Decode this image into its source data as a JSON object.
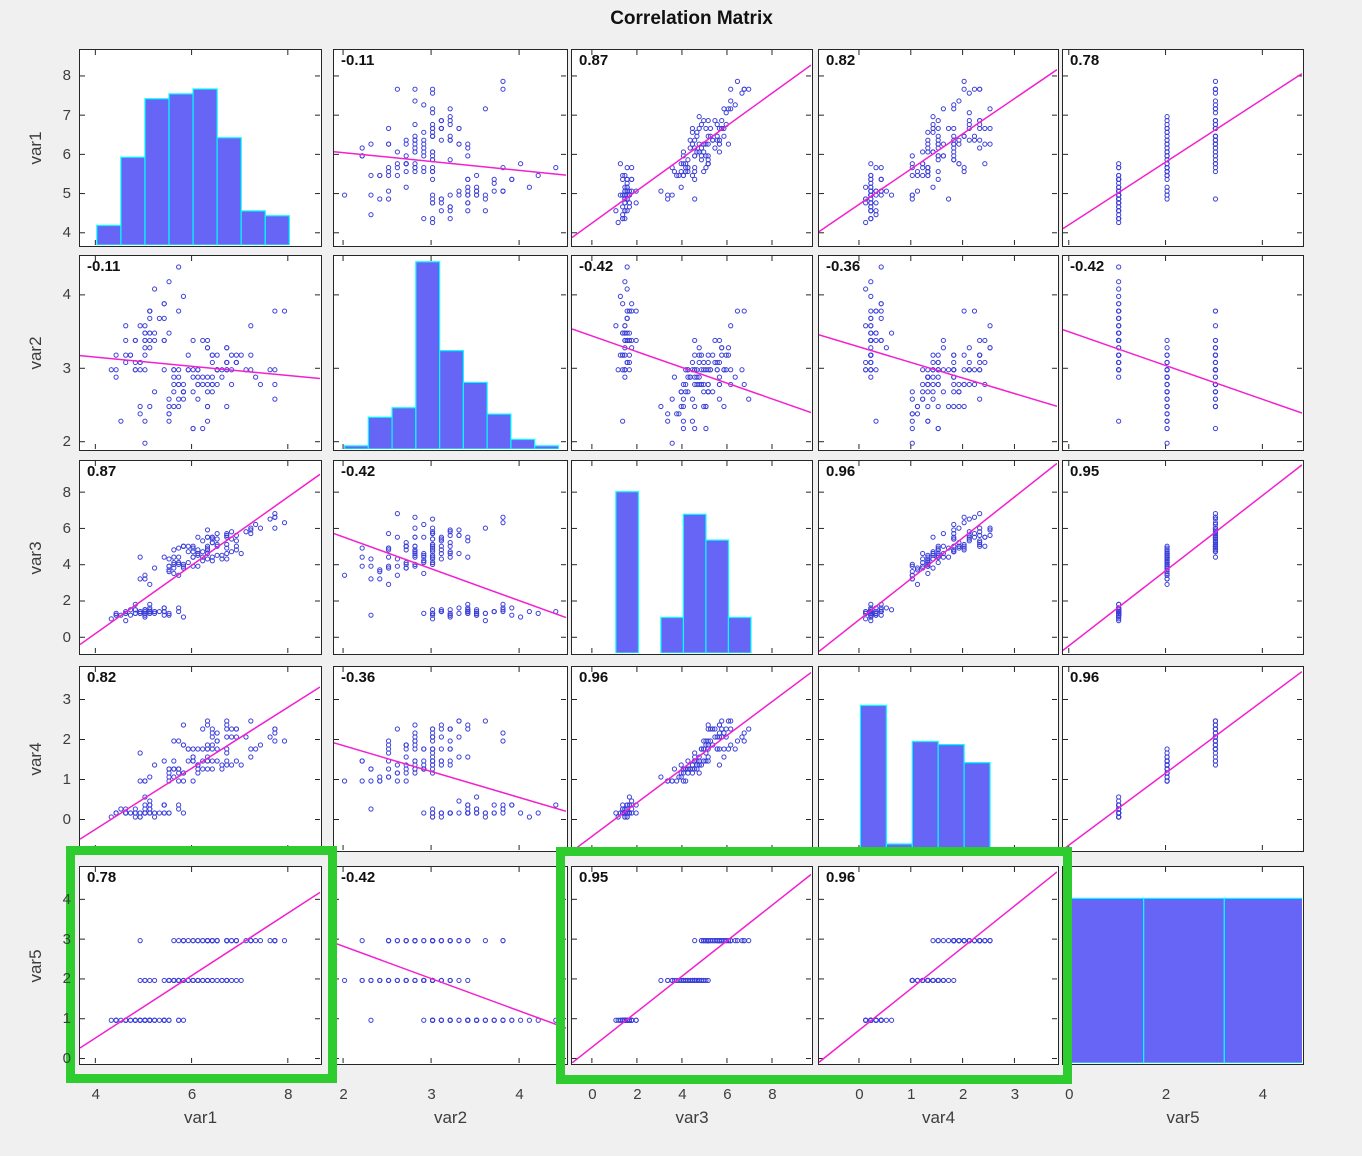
{
  "title": "Correlation Matrix",
  "colors": {
    "figure_background": "#f0f0f1",
    "axes_background": "#ffffff",
    "frame": "#262626",
    "marker": "#3c40d8",
    "histogram_fill": "#6665f5",
    "histogram_edge": "#00ffff",
    "fit_line": "#f320cf",
    "correlation_text": "#111111",
    "tick_text": "#3d3d3d",
    "highlight": "#2ecc2e"
  },
  "chart_data": {
    "type": "scatter",
    "subtype": "scatter-plot-matrix",
    "title": "Correlation Matrix",
    "n_observations": 150,
    "marker": "open-circle",
    "fit": "least-squares-line-per-panel",
    "diagonal": "histogram",
    "variables": [
      {
        "name": "var1",
        "axis_limits": [
          3.65,
          8.7
        ],
        "y_ticks": [
          4,
          5,
          6,
          7,
          8
        ],
        "x_ticks": [
          4,
          6,
          8
        ]
      },
      {
        "name": "var2",
        "axis_limits": [
          1.88,
          4.55
        ],
        "y_ticks": [
          2,
          3,
          4
        ],
        "x_ticks": [
          2,
          3,
          4
        ]
      },
      {
        "name": "var3",
        "axis_limits": [
          -0.95,
          9.8
        ],
        "y_ticks": [
          0,
          2,
          4,
          6,
          8
        ],
        "x_ticks": [
          0,
          2,
          4,
          6,
          8
        ]
      },
      {
        "name": "var4",
        "axis_limits": [
          -0.8,
          3.85
        ],
        "y_ticks": [
          0,
          1,
          2,
          3
        ],
        "x_ticks": [
          0,
          1,
          2,
          3
        ]
      },
      {
        "name": "var5",
        "axis_limits": [
          -0.15,
          4.85
        ],
        "y_ticks": [
          0,
          1,
          2,
          3,
          4
        ],
        "x_ticks": [
          0,
          2,
          4
        ]
      }
    ],
    "correlations": [
      [
        null,
        "-0.11",
        "0.87",
        "0.82",
        "0.78"
      ],
      [
        "-0.11",
        null,
        "-0.42",
        "-0.36",
        "-0.42"
      ],
      [
        "0.87",
        "-0.42",
        null,
        "0.96",
        "0.95"
      ],
      [
        "0.82",
        "-0.36",
        "0.96",
        null,
        "0.96"
      ],
      [
        "0.78",
        "-0.42",
        "0.95",
        "0.96",
        null
      ]
    ],
    "histograms": [
      {
        "variable": "var1",
        "bin_edges": [
          4,
          4.5,
          5,
          5.5,
          6,
          6.5,
          7,
          7.5,
          8
        ],
        "counts": [
          4,
          18,
          30,
          31,
          32,
          22,
          7,
          6
        ],
        "peak_height_frac": 0.8
      },
      {
        "variable": "var2",
        "bin_edges": [
          2.0,
          2.27,
          2.54,
          2.81,
          3.08,
          3.35,
          3.62,
          3.89,
          4.16,
          4.43
        ],
        "counts": [
          1,
          10,
          13,
          59,
          31,
          21,
          11,
          3,
          1
        ],
        "peak_height_frac": 0.97
      },
      {
        "variable": "var3",
        "bin_edges": [
          1,
          2,
          3,
          4,
          5,
          6,
          7
        ],
        "counts": [
          50,
          0,
          11,
          43,
          35,
          11
        ],
        "peak_height_frac": 0.84
      },
      {
        "variable": "var4",
        "bin_edges": [
          0,
          0.5,
          1,
          1.5,
          2,
          2.5
        ],
        "counts": [
          48,
          2,
          36,
          35,
          29
        ],
        "peak_height_frac": 0.79
      },
      {
        "variable": "var5",
        "bin_edges": [
          -0.15,
          1.5166,
          3.1833,
          4.85
        ],
        "counts": [
          50,
          50,
          50
        ],
        "peak_height_frac": 0.84
      }
    ],
    "observations": [
      [
        5.1,
        3.5,
        1.4,
        0.2,
        1
      ],
      [
        4.9,
        3.0,
        1.4,
        0.2,
        1
      ],
      [
        4.7,
        3.2,
        1.3,
        0.2,
        1
      ],
      [
        4.6,
        3.1,
        1.5,
        0.2,
        1
      ],
      [
        5.0,
        3.6,
        1.4,
        0.2,
        1
      ],
      [
        5.4,
        3.9,
        1.7,
        0.4,
        1
      ],
      [
        4.6,
        3.4,
        1.4,
        0.3,
        1
      ],
      [
        5.0,
        3.4,
        1.5,
        0.2,
        1
      ],
      [
        4.4,
        2.9,
        1.4,
        0.2,
        1
      ],
      [
        4.9,
        3.1,
        1.5,
        0.1,
        1
      ],
      [
        5.4,
        3.7,
        1.5,
        0.2,
        1
      ],
      [
        4.8,
        3.4,
        1.6,
        0.2,
        1
      ],
      [
        4.8,
        3.0,
        1.4,
        0.1,
        1
      ],
      [
        4.3,
        3.0,
        1.1,
        0.1,
        1
      ],
      [
        5.8,
        4.0,
        1.2,
        0.2,
        1
      ],
      [
        5.7,
        4.4,
        1.5,
        0.4,
        1
      ],
      [
        5.4,
        3.9,
        1.3,
        0.4,
        1
      ],
      [
        5.1,
        3.5,
        1.4,
        0.3,
        1
      ],
      [
        5.7,
        3.8,
        1.7,
        0.3,
        1
      ],
      [
        5.1,
        3.8,
        1.5,
        0.3,
        1
      ],
      [
        5.4,
        3.4,
        1.7,
        0.2,
        1
      ],
      [
        5.1,
        3.7,
        1.5,
        0.4,
        1
      ],
      [
        4.6,
        3.6,
        1.0,
        0.2,
        1
      ],
      [
        5.1,
        3.3,
        1.7,
        0.5,
        1
      ],
      [
        4.8,
        3.4,
        1.9,
        0.2,
        1
      ],
      [
        5.0,
        3.0,
        1.6,
        0.2,
        1
      ],
      [
        5.0,
        3.4,
        1.6,
        0.4,
        1
      ],
      [
        5.2,
        3.5,
        1.5,
        0.2,
        1
      ],
      [
        5.2,
        3.4,
        1.4,
        0.2,
        1
      ],
      [
        4.7,
        3.2,
        1.6,
        0.2,
        1
      ],
      [
        4.8,
        3.1,
        1.6,
        0.2,
        1
      ],
      [
        5.4,
        3.4,
        1.5,
        0.4,
        1
      ],
      [
        5.2,
        4.1,
        1.5,
        0.1,
        1
      ],
      [
        5.5,
        4.2,
        1.4,
        0.2,
        1
      ],
      [
        4.9,
        3.1,
        1.5,
        0.2,
        1
      ],
      [
        5.0,
        3.2,
        1.2,
        0.2,
        1
      ],
      [
        5.5,
        3.5,
        1.3,
        0.2,
        1
      ],
      [
        4.9,
        3.6,
        1.4,
        0.1,
        1
      ],
      [
        4.4,
        3.0,
        1.3,
        0.2,
        1
      ],
      [
        5.1,
        3.4,
        1.5,
        0.2,
        1
      ],
      [
        5.0,
        3.5,
        1.3,
        0.3,
        1
      ],
      [
        4.5,
        2.3,
        1.3,
        0.3,
        1
      ],
      [
        4.4,
        3.2,
        1.3,
        0.2,
        1
      ],
      [
        5.0,
        3.5,
        1.6,
        0.6,
        1
      ],
      [
        5.1,
        3.8,
        1.9,
        0.4,
        1
      ],
      [
        4.8,
        3.0,
        1.4,
        0.3,
        1
      ],
      [
        5.1,
        3.8,
        1.6,
        0.2,
        1
      ],
      [
        4.6,
        3.2,
        1.4,
        0.2,
        1
      ],
      [
        5.3,
        3.7,
        1.5,
        0.2,
        1
      ],
      [
        5.0,
        3.3,
        1.4,
        0.2,
        1
      ],
      [
        7.0,
        3.2,
        4.7,
        1.4,
        2
      ],
      [
        6.4,
        3.2,
        4.5,
        1.5,
        2
      ],
      [
        6.9,
        3.1,
        4.9,
        1.5,
        2
      ],
      [
        5.5,
        2.3,
        4.0,
        1.3,
        2
      ],
      [
        6.5,
        2.8,
        4.6,
        1.5,
        2
      ],
      [
        5.7,
        2.8,
        4.5,
        1.3,
        2
      ],
      [
        6.3,
        3.3,
        4.7,
        1.6,
        2
      ],
      [
        4.9,
        2.4,
        3.3,
        1.0,
        2
      ],
      [
        6.6,
        2.9,
        4.6,
        1.3,
        2
      ],
      [
        5.2,
        2.7,
        3.9,
        1.4,
        2
      ],
      [
        5.0,
        2.0,
        3.5,
        1.0,
        2
      ],
      [
        5.9,
        3.0,
        4.2,
        1.5,
        2
      ],
      [
        6.0,
        2.2,
        4.0,
        1.0,
        2
      ],
      [
        6.1,
        2.9,
        4.7,
        1.4,
        2
      ],
      [
        5.6,
        2.9,
        3.6,
        1.3,
        2
      ],
      [
        6.7,
        3.1,
        4.4,
        1.4,
        2
      ],
      [
        5.6,
        3.0,
        4.5,
        1.5,
        2
      ],
      [
        5.8,
        2.7,
        4.1,
        1.0,
        2
      ],
      [
        6.2,
        2.2,
        4.5,
        1.5,
        2
      ],
      [
        5.6,
        2.5,
        3.9,
        1.1,
        2
      ],
      [
        5.9,
        3.2,
        4.8,
        1.8,
        2
      ],
      [
        6.1,
        2.8,
        4.0,
        1.3,
        2
      ],
      [
        6.3,
        2.5,
        4.9,
        1.5,
        2
      ],
      [
        6.1,
        2.8,
        4.7,
        1.2,
        2
      ],
      [
        6.4,
        2.9,
        4.3,
        1.3,
        2
      ],
      [
        6.6,
        3.0,
        4.4,
        1.4,
        2
      ],
      [
        6.8,
        2.8,
        4.8,
        1.4,
        2
      ],
      [
        6.7,
        3.0,
        5.0,
        1.7,
        2
      ],
      [
        6.0,
        2.9,
        4.5,
        1.5,
        2
      ],
      [
        5.7,
        2.6,
        3.5,
        1.0,
        2
      ],
      [
        5.5,
        2.4,
        3.8,
        1.1,
        2
      ],
      [
        5.5,
        2.4,
        3.7,
        1.0,
        2
      ],
      [
        5.8,
        2.7,
        3.9,
        1.2,
        2
      ],
      [
        6.0,
        2.7,
        5.1,
        1.6,
        2
      ],
      [
        5.4,
        3.0,
        4.5,
        1.5,
        2
      ],
      [
        6.0,
        3.4,
        4.5,
        1.6,
        2
      ],
      [
        6.7,
        3.1,
        4.7,
        1.5,
        2
      ],
      [
        6.3,
        2.3,
        4.4,
        1.3,
        2
      ],
      [
        5.6,
        3.0,
        4.1,
        1.3,
        2
      ],
      [
        5.5,
        2.5,
        4.0,
        1.3,
        2
      ],
      [
        5.5,
        2.6,
        4.4,
        1.2,
        2
      ],
      [
        6.1,
        3.0,
        4.6,
        1.4,
        2
      ],
      [
        5.8,
        2.6,
        4.0,
        1.2,
        2
      ],
      [
        5.0,
        2.3,
        3.3,
        1.0,
        2
      ],
      [
        5.6,
        2.7,
        4.2,
        1.3,
        2
      ],
      [
        5.7,
        3.0,
        4.2,
        1.2,
        2
      ],
      [
        5.7,
        2.9,
        4.2,
        1.3,
        2
      ],
      [
        6.2,
        2.9,
        4.3,
        1.3,
        2
      ],
      [
        5.1,
        2.5,
        3.0,
        1.1,
        2
      ],
      [
        5.7,
        2.8,
        4.1,
        1.3,
        2
      ],
      [
        6.3,
        3.3,
        6.0,
        2.5,
        3
      ],
      [
        5.8,
        2.7,
        5.1,
        1.9,
        3
      ],
      [
        7.1,
        3.0,
        5.9,
        2.1,
        3
      ],
      [
        6.3,
        2.9,
        5.6,
        1.8,
        3
      ],
      [
        6.5,
        3.0,
        5.8,
        2.2,
        3
      ],
      [
        7.6,
        3.0,
        6.6,
        2.1,
        3
      ],
      [
        4.9,
        2.5,
        4.5,
        1.7,
        3
      ],
      [
        7.3,
        2.9,
        6.3,
        1.8,
        3
      ],
      [
        6.7,
        2.5,
        5.8,
        1.8,
        3
      ],
      [
        7.2,
        3.6,
        6.1,
        2.5,
        3
      ],
      [
        6.5,
        3.2,
        5.1,
        2.0,
        3
      ],
      [
        6.4,
        2.7,
        5.3,
        1.9,
        3
      ],
      [
        6.8,
        3.0,
        5.5,
        2.1,
        3
      ],
      [
        5.7,
        2.5,
        5.0,
        2.0,
        3
      ],
      [
        5.8,
        2.8,
        5.1,
        2.4,
        3
      ],
      [
        6.4,
        3.2,
        5.3,
        2.3,
        3
      ],
      [
        6.5,
        3.0,
        5.5,
        1.8,
        3
      ],
      [
        7.7,
        3.8,
        6.7,
        2.2,
        3
      ],
      [
        7.7,
        2.6,
        6.9,
        2.3,
        3
      ],
      [
        6.0,
        2.2,
        5.0,
        1.5,
        3
      ],
      [
        6.9,
        3.2,
        5.7,
        2.3,
        3
      ],
      [
        5.6,
        2.8,
        4.9,
        2.0,
        3
      ],
      [
        7.7,
        2.8,
        6.7,
        2.0,
        3
      ],
      [
        6.3,
        2.7,
        4.9,
        1.8,
        3
      ],
      [
        6.7,
        3.3,
        5.7,
        2.1,
        3
      ],
      [
        7.2,
        3.2,
        6.0,
        1.8,
        3
      ],
      [
        6.2,
        2.8,
        4.8,
        1.8,
        3
      ],
      [
        6.1,
        3.0,
        4.9,
        1.8,
        3
      ],
      [
        6.4,
        2.8,
        5.6,
        2.1,
        3
      ],
      [
        7.2,
        3.0,
        5.8,
        1.6,
        3
      ],
      [
        7.4,
        2.8,
        6.1,
        1.9,
        3
      ],
      [
        7.9,
        3.8,
        6.4,
        2.0,
        3
      ],
      [
        6.4,
        2.8,
        5.6,
        2.2,
        3
      ],
      [
        6.3,
        2.8,
        5.1,
        1.5,
        3
      ],
      [
        6.1,
        2.6,
        5.6,
        1.4,
        3
      ],
      [
        7.7,
        3.0,
        6.1,
        2.3,
        3
      ],
      [
        6.3,
        3.4,
        5.6,
        2.4,
        3
      ],
      [
        6.4,
        3.1,
        5.5,
        1.8,
        3
      ],
      [
        6.0,
        3.0,
        4.8,
        1.8,
        3
      ],
      [
        6.9,
        3.1,
        5.4,
        2.1,
        3
      ],
      [
        6.7,
        3.1,
        5.6,
        2.4,
        3
      ],
      [
        6.9,
        3.1,
        5.1,
        2.3,
        3
      ],
      [
        5.8,
        2.7,
        5.1,
        1.9,
        3
      ],
      [
        6.8,
        3.2,
        5.9,
        2.3,
        3
      ],
      [
        6.7,
        3.3,
        5.7,
        2.5,
        3
      ],
      [
        6.7,
        3.0,
        5.2,
        2.3,
        3
      ],
      [
        6.3,
        2.5,
        5.0,
        1.9,
        3
      ],
      [
        6.5,
        3.0,
        5.2,
        2.0,
        3
      ],
      [
        6.2,
        3.4,
        5.4,
        2.3,
        3
      ],
      [
        5.9,
        3.0,
        5.1,
        1.8,
        3
      ]
    ]
  },
  "highlights": [
    {
      "panels": [
        "var5 vs var1"
      ]
    },
    {
      "panels": [
        "var5 vs var3",
        "var5 vs var4"
      ]
    }
  ]
}
